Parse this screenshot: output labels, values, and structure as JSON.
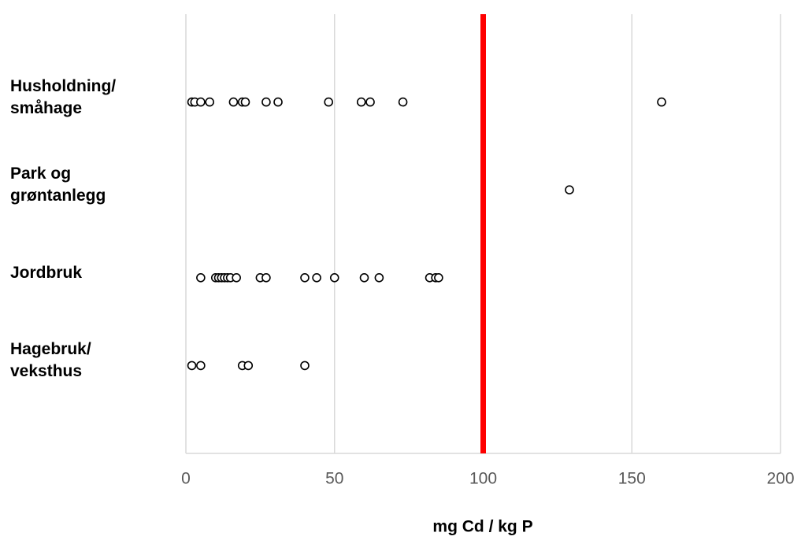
{
  "chart_data": {
    "type": "strip",
    "xlabel": "mg Cd / kg P",
    "categories": [
      "Husholdning/\nsmåhage",
      "Park og\ngrøntanlegg",
      "Jordbruk",
      "Hagebruk/\nveksthus"
    ],
    "values": [
      [
        2,
        3,
        5,
        8,
        16,
        19,
        20,
        27,
        31,
        48,
        59,
        62,
        73,
        160
      ],
      [
        129
      ],
      [
        5,
        10,
        11,
        12,
        13,
        14,
        15,
        17,
        25,
        27,
        40,
        44,
        50,
        60,
        65,
        82,
        84,
        85
      ],
      [
        2,
        5,
        19,
        21,
        40
      ]
    ],
    "color": "#000000",
    "xlim": [
      0,
      200
    ],
    "xticks": [
      0,
      50,
      100,
      150,
      200
    ],
    "grid": true,
    "reference_line": {
      "value": 100,
      "color": "#ff0000"
    }
  }
}
